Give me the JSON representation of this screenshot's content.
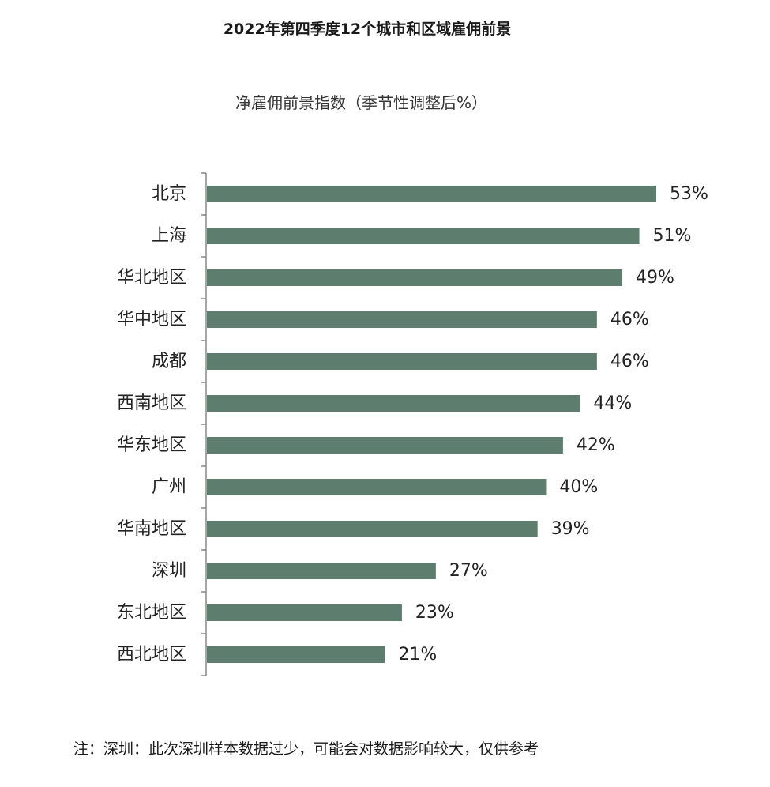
{
  "title": "2022年第四季度12个城市和区域雇佣前景",
  "footnote": "注：深圳：此次深圳样本数据过少，可能会对数据影响较大，仅供参考",
  "colors": {
    "bar": "#5d7d6e",
    "axis": "#888888"
  },
  "chart_data": {
    "type": "bar",
    "orientation": "horizontal",
    "title": "净雇佣前景指数（季节性调整后%）",
    "xlabel": "",
    "ylabel": "",
    "categories": [
      "北京",
      "上海",
      "华北地区",
      "华中地区",
      "成都",
      "西南地区",
      "华东地区",
      "广州",
      "华南地区",
      "深圳",
      "东北地区",
      "西北地区"
    ],
    "values": [
      53,
      51,
      49,
      46,
      46,
      44,
      42,
      40,
      39,
      27,
      23,
      21
    ],
    "data_labels": [
      "53%",
      "51%",
      "49%",
      "46%",
      "46%",
      "44%",
      "42%",
      "40%",
      "39%",
      "27%",
      "23%",
      "21%"
    ],
    "xlim": [
      0,
      53
    ],
    "grid": false,
    "legend": "none"
  }
}
